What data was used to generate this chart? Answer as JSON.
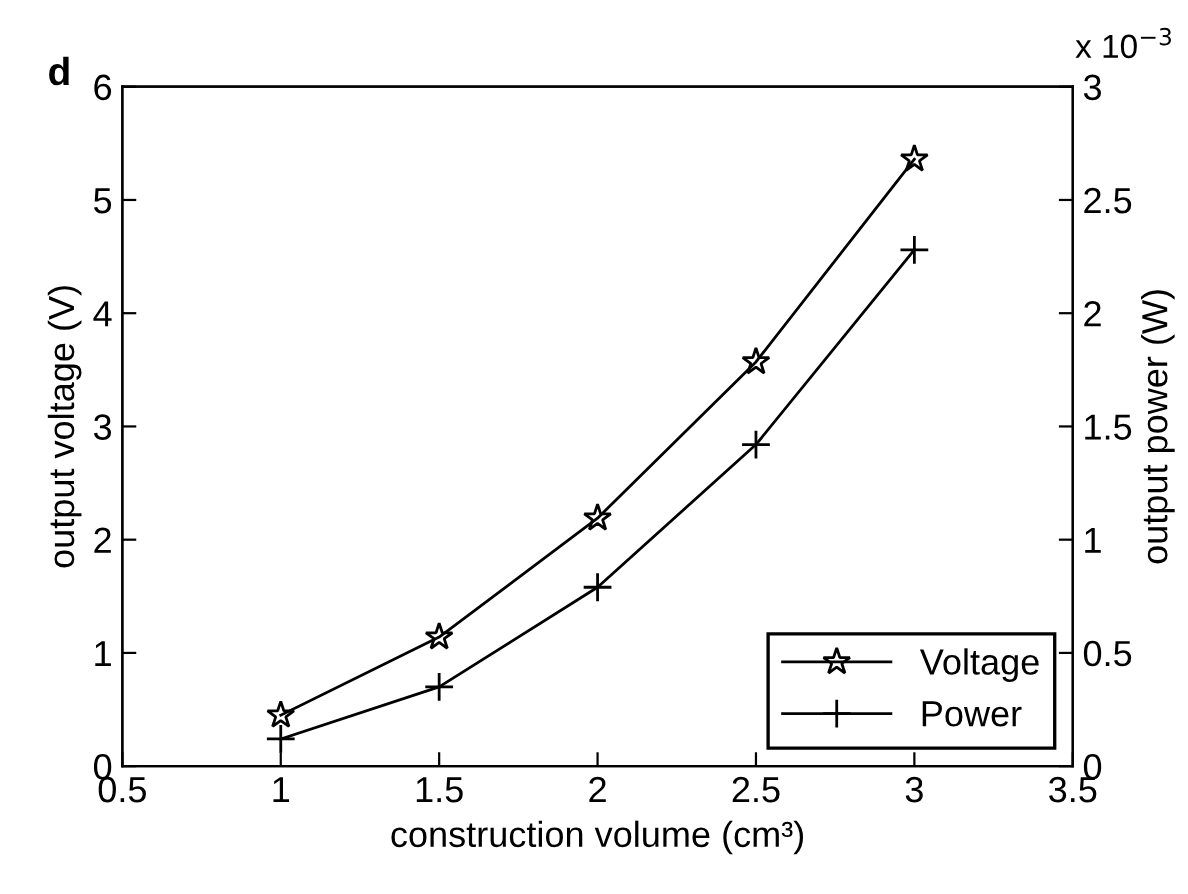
{
  "chart_data": {
    "type": "line",
    "xlabel": "construction volume (cm³)",
    "ylabel": "output voltage (V)",
    "y2label": "output power (W)",
    "x": [
      1,
      1.5,
      2,
      2.5,
      3
    ],
    "series": [
      {
        "name": "Voltage",
        "color": "#000000",
        "marker": "star",
        "values": [
          0.45,
          1.14,
          2.19,
          3.57,
          5.36
        ]
      },
      {
        "name": "Power",
        "color": "#000000",
        "marker": "cross",
        "axis": "y2",
        "values": [
          0.12,
          0.35,
          0.79,
          1.42,
          2.28
        ]
      }
    ],
    "xlim": [
      0.5,
      3.5
    ],
    "xticks": [
      0.5,
      1,
      1.5,
      2,
      2.5,
      3,
      3.5
    ],
    "ylim": [
      0,
      6
    ],
    "yticks": [
      0,
      1,
      2,
      3,
      4,
      5,
      6
    ],
    "y2lim": [
      0,
      3
    ],
    "y2ticks": [
      0,
      0.5,
      1,
      1.5,
      2,
      2.5,
      3
    ],
    "annotations": [
      "d",
      "x 10$^{−3}$"
    ],
    "legend": "bottom right",
    "grid": false,
    "line_style": "solid"
  }
}
